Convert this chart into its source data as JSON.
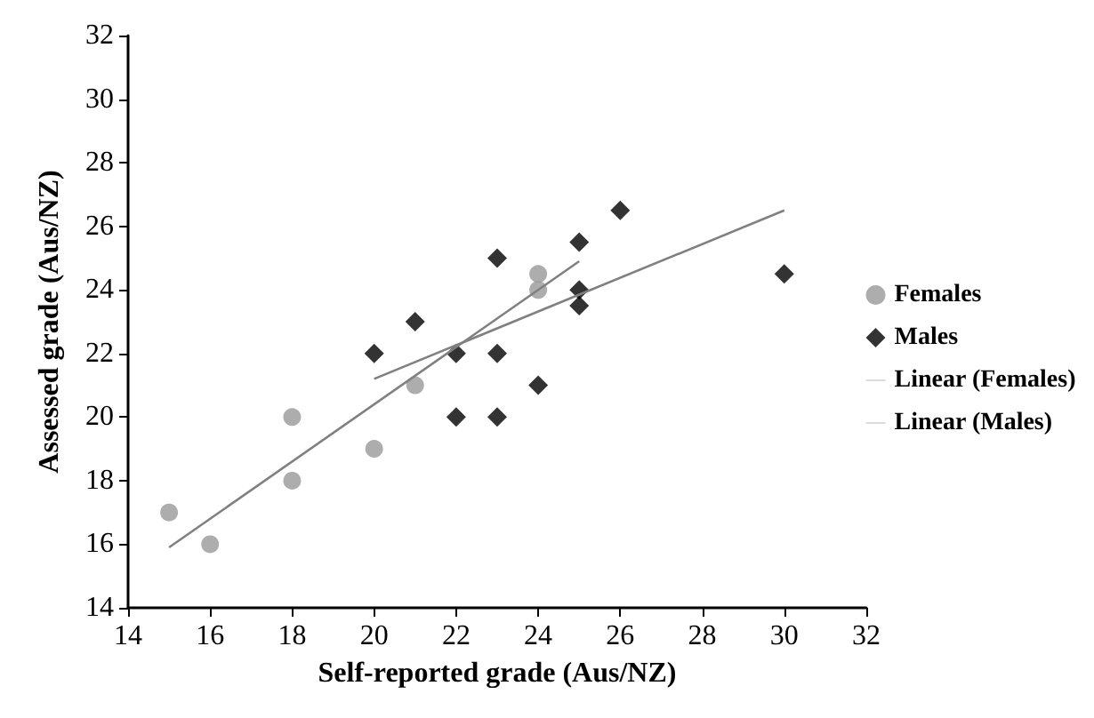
{
  "chart_data": {
    "type": "scatter",
    "xlabel": "Self-reported grade (Aus/NZ)",
    "ylabel": "Assessed grade (Aus/NZ)",
    "xlim": [
      14,
      32
    ],
    "xticks": [
      14,
      16,
      18,
      20,
      22,
      24,
      26,
      28,
      30,
      32
    ],
    "ylim": [
      14,
      32
    ],
    "yticks": [
      14,
      16,
      18,
      20,
      22,
      24,
      26,
      28,
      30,
      32
    ],
    "grid": false,
    "legend": "right",
    "series": [
      {
        "name": "Females",
        "marker": "circle",
        "color": "#999999",
        "x": [
          15,
          16,
          18,
          18,
          20,
          21,
          24,
          24
        ],
        "values": [
          17,
          16,
          20,
          18,
          19,
          21,
          24.5,
          24
        ]
      },
      {
        "name": "Males",
        "marker": "diamond",
        "color": "#000000",
        "x": [
          20,
          21,
          22,
          22,
          23,
          23,
          23,
          24,
          25,
          25,
          25,
          26,
          30
        ],
        "values": [
          22,
          23,
          22,
          20,
          25,
          22,
          20,
          21,
          25.5,
          24,
          23.5,
          26.5,
          24.5
        ]
      },
      {
        "name": "Linear (Females)",
        "type": "line",
        "marker": "none",
        "color": "#808080",
        "x": [
          15,
          25
        ],
        "values": [
          15.9,
          24.9
        ]
      },
      {
        "name": "Linear (Males)",
        "type": "line",
        "marker": "none",
        "color": "#808080",
        "x": [
          20,
          30
        ],
        "values": [
          21.2,
          26.5
        ]
      }
    ]
  }
}
